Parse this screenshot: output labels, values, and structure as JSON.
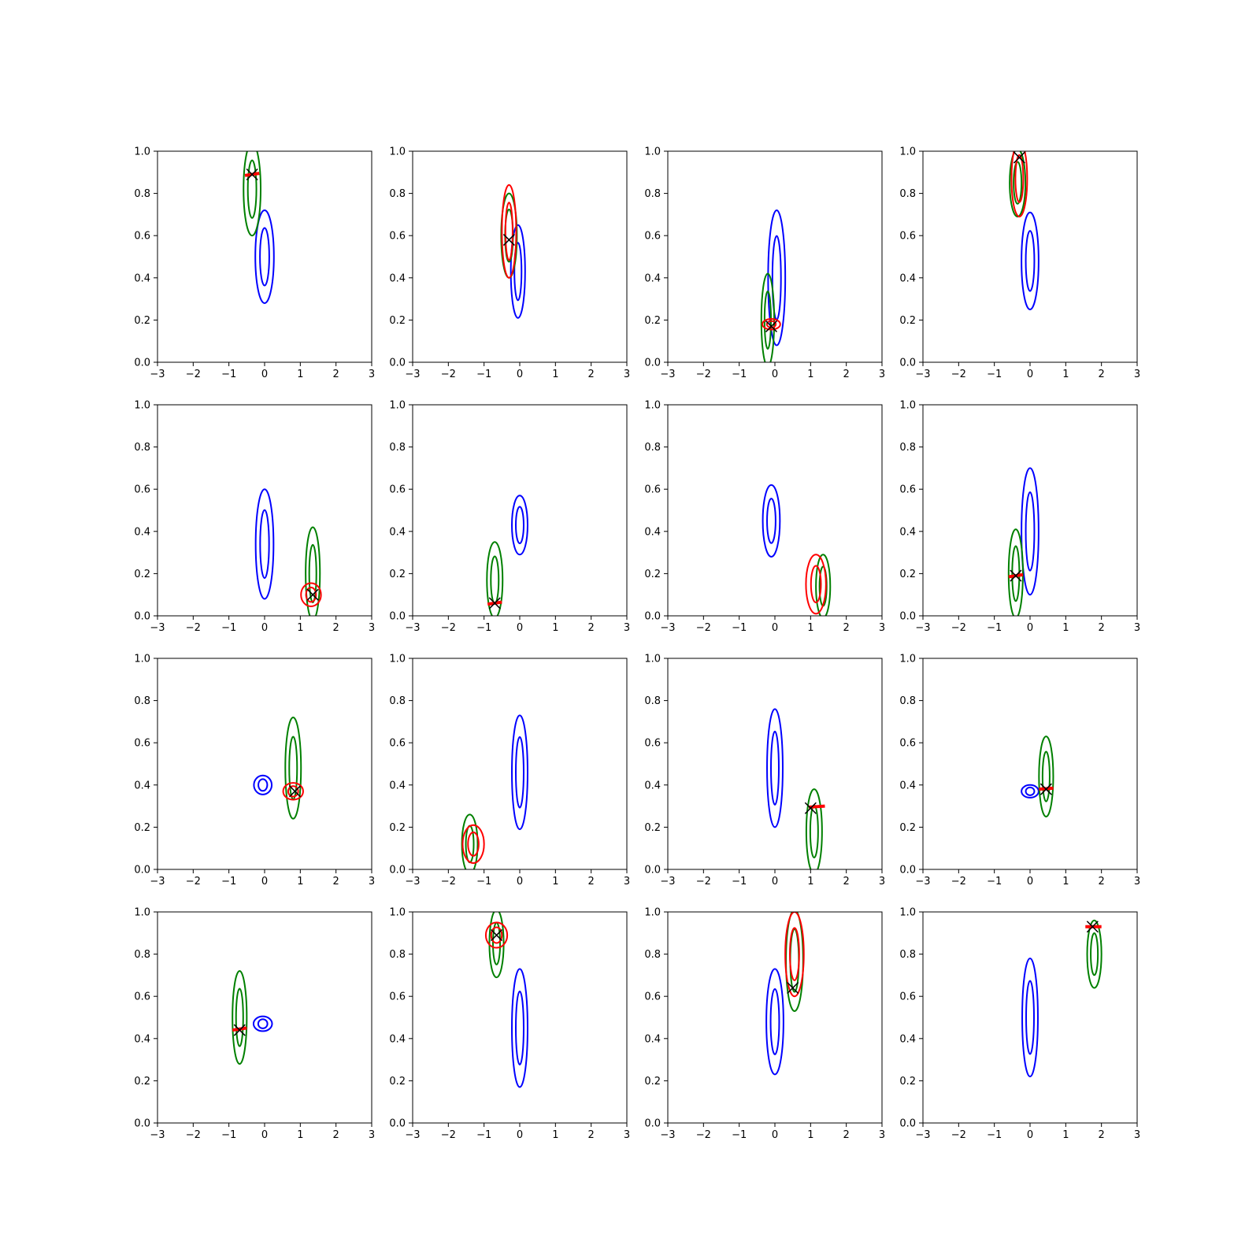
{
  "chart_data": {
    "type": "contour",
    "layout": {
      "rows": 4,
      "cols": 4
    },
    "colors": {
      "blue": "#0000ff",
      "green": "#008000",
      "red": "#ff0000",
      "marker": "#000000"
    },
    "axes": {
      "xlim": [
        -3,
        3
      ],
      "ylim": [
        0,
        1
      ],
      "xticks": [
        "−3",
        "−2",
        "−1",
        "0",
        "1",
        "2",
        "3"
      ],
      "yticks": [
        "0.0",
        "0.2",
        "0.4",
        "0.6",
        "0.8",
        "1.0"
      ],
      "grid": false
    },
    "panels": [
      {
        "blue": {
          "cx": 0.0,
          "cy": 0.5,
          "rx": 0.26,
          "ry": 0.22
        },
        "green": {
          "cx": -0.35,
          "cy": 0.82,
          "rx": 0.24,
          "ry": 0.22
        },
        "red": null,
        "marker": [
          -0.35,
          0.89
        ],
        "redline": [
          [
            -0.55,
            0.885
          ],
          [
            -0.15,
            0.895
          ]
        ]
      },
      {
        "blue": {
          "cx": -0.05,
          "cy": 0.43,
          "rx": 0.2,
          "ry": 0.22
        },
        "green": {
          "cx": -0.3,
          "cy": 0.6,
          "rx": 0.22,
          "ry": 0.2
        },
        "red": {
          "cx": -0.3,
          "cy": 0.62,
          "rx": 0.2,
          "ry": 0.22
        },
        "marker": [
          -0.3,
          0.58
        ],
        "redline": null
      },
      {
        "blue": {
          "cx": 0.05,
          "cy": 0.4,
          "rx": 0.24,
          "ry": 0.32
        },
        "green": {
          "cx": -0.2,
          "cy": 0.2,
          "rx": 0.18,
          "ry": 0.22
        },
        "red": {
          "cx": -0.1,
          "cy": 0.18,
          "rx": 0.25,
          "ry": 0.025
        },
        "marker": [
          -0.1,
          0.17
        ],
        "redline": null
      },
      {
        "blue": {
          "cx": 0.0,
          "cy": 0.48,
          "rx": 0.24,
          "ry": 0.23
        },
        "green": {
          "cx": -0.35,
          "cy": 0.85,
          "rx": 0.22,
          "ry": 0.16
        },
        "red": {
          "cx": -0.3,
          "cy": 0.87,
          "rx": 0.22,
          "ry": 0.18
        },
        "marker": [
          -0.3,
          0.97
        ],
        "redline": null
      },
      {
        "blue": {
          "cx": 0.0,
          "cy": 0.34,
          "rx": 0.25,
          "ry": 0.26
        },
        "green": {
          "cx": 1.35,
          "cy": 0.2,
          "rx": 0.2,
          "ry": 0.22
        },
        "red": {
          "cx": 1.3,
          "cy": 0.1,
          "rx": 0.28,
          "ry": 0.055
        },
        "marker": [
          1.35,
          0.1
        ],
        "redline": null
      },
      {
        "blue": {
          "cx": 0.0,
          "cy": 0.43,
          "rx": 0.22,
          "ry": 0.14
        },
        "green": {
          "cx": -0.7,
          "cy": 0.17,
          "rx": 0.22,
          "ry": 0.18
        },
        "red": null,
        "marker": [
          -0.7,
          0.06
        ],
        "redline": [
          [
            -0.9,
            0.055
          ],
          [
            -0.5,
            0.065
          ]
        ]
      },
      {
        "blue": {
          "cx": -0.1,
          "cy": 0.45,
          "rx": 0.24,
          "ry": 0.17
        },
        "green": {
          "cx": 1.35,
          "cy": 0.14,
          "rx": 0.2,
          "ry": 0.15
        },
        "red": {
          "cx": 1.15,
          "cy": 0.15,
          "rx": 0.28,
          "ry": 0.14
        },
        "marker": null,
        "redline": null
      },
      {
        "blue": {
          "cx": 0.0,
          "cy": 0.4,
          "rx": 0.24,
          "ry": 0.3
        },
        "green": {
          "cx": -0.4,
          "cy": 0.2,
          "rx": 0.2,
          "ry": 0.21
        },
        "red": null,
        "marker": [
          -0.4,
          0.19
        ],
        "redline": [
          [
            -0.6,
            0.185
          ],
          [
            -0.2,
            0.195
          ]
        ]
      },
      {
        "blue": {
          "cx": -0.05,
          "cy": 0.4,
          "rx": 0.25,
          "ry": 0.045
        },
        "green": {
          "cx": 0.8,
          "cy": 0.48,
          "rx": 0.22,
          "ry": 0.24
        },
        "red": {
          "cx": 0.8,
          "cy": 0.37,
          "rx": 0.28,
          "ry": 0.04
        },
        "marker": [
          0.85,
          0.37
        ],
        "redline": null
      },
      {
        "blue": {
          "cx": 0.0,
          "cy": 0.46,
          "rx": 0.22,
          "ry": 0.27
        },
        "green": {
          "cx": -1.4,
          "cy": 0.12,
          "rx": 0.22,
          "ry": 0.14
        },
        "red": {
          "cx": -1.3,
          "cy": 0.12,
          "rx": 0.3,
          "ry": 0.09
        },
        "marker": null,
        "redline": null
      },
      {
        "blue": {
          "cx": 0.0,
          "cy": 0.48,
          "rx": 0.22,
          "ry": 0.28
        },
        "green": {
          "cx": 1.1,
          "cy": 0.18,
          "rx": 0.22,
          "ry": 0.2
        },
        "red": null,
        "marker": [
          1.0,
          0.29
        ],
        "redline": [
          [
            0.95,
            0.295
          ],
          [
            1.4,
            0.3
          ]
        ]
      },
      {
        "blue": {
          "cx": 0.0,
          "cy": 0.37,
          "rx": 0.24,
          "ry": 0.03
        },
        "green": {
          "cx": 0.45,
          "cy": 0.44,
          "rx": 0.2,
          "ry": 0.19
        },
        "red": null,
        "marker": [
          0.45,
          0.38
        ],
        "redline": [
          [
            0.25,
            0.38
          ],
          [
            0.65,
            0.385
          ]
        ]
      },
      {
        "blue": {
          "cx": -0.05,
          "cy": 0.47,
          "rx": 0.26,
          "ry": 0.035
        },
        "green": {
          "cx": -0.7,
          "cy": 0.5,
          "rx": 0.2,
          "ry": 0.22
        },
        "red": null,
        "marker": [
          -0.7,
          0.44
        ],
        "redline": [
          [
            -0.9,
            0.44
          ],
          [
            -0.5,
            0.45
          ]
        ]
      },
      {
        "blue": {
          "cx": 0.0,
          "cy": 0.45,
          "rx": 0.22,
          "ry": 0.28
        },
        "green": {
          "cx": -0.65,
          "cy": 0.85,
          "rx": 0.2,
          "ry": 0.16
        },
        "red": {
          "cx": -0.65,
          "cy": 0.89,
          "rx": 0.3,
          "ry": 0.06
        },
        "marker": [
          -0.65,
          0.89
        ],
        "redline": null
      },
      {
        "blue": {
          "cx": 0.0,
          "cy": 0.48,
          "rx": 0.24,
          "ry": 0.25
        },
        "green": {
          "cx": 0.55,
          "cy": 0.77,
          "rx": 0.24,
          "ry": 0.24
        },
        "red": {
          "cx": 0.55,
          "cy": 0.8,
          "rx": 0.26,
          "ry": 0.2
        },
        "marker": [
          0.5,
          0.64
        ],
        "redline": null
      },
      {
        "blue": {
          "cx": 0.0,
          "cy": 0.5,
          "rx": 0.22,
          "ry": 0.28
        },
        "green": {
          "cx": 1.8,
          "cy": 0.8,
          "rx": 0.2,
          "ry": 0.16
        },
        "red": null,
        "marker": [
          1.75,
          0.93
        ],
        "redline": [
          [
            1.55,
            0.93
          ],
          [
            2.0,
            0.93
          ]
        ]
      }
    ]
  }
}
